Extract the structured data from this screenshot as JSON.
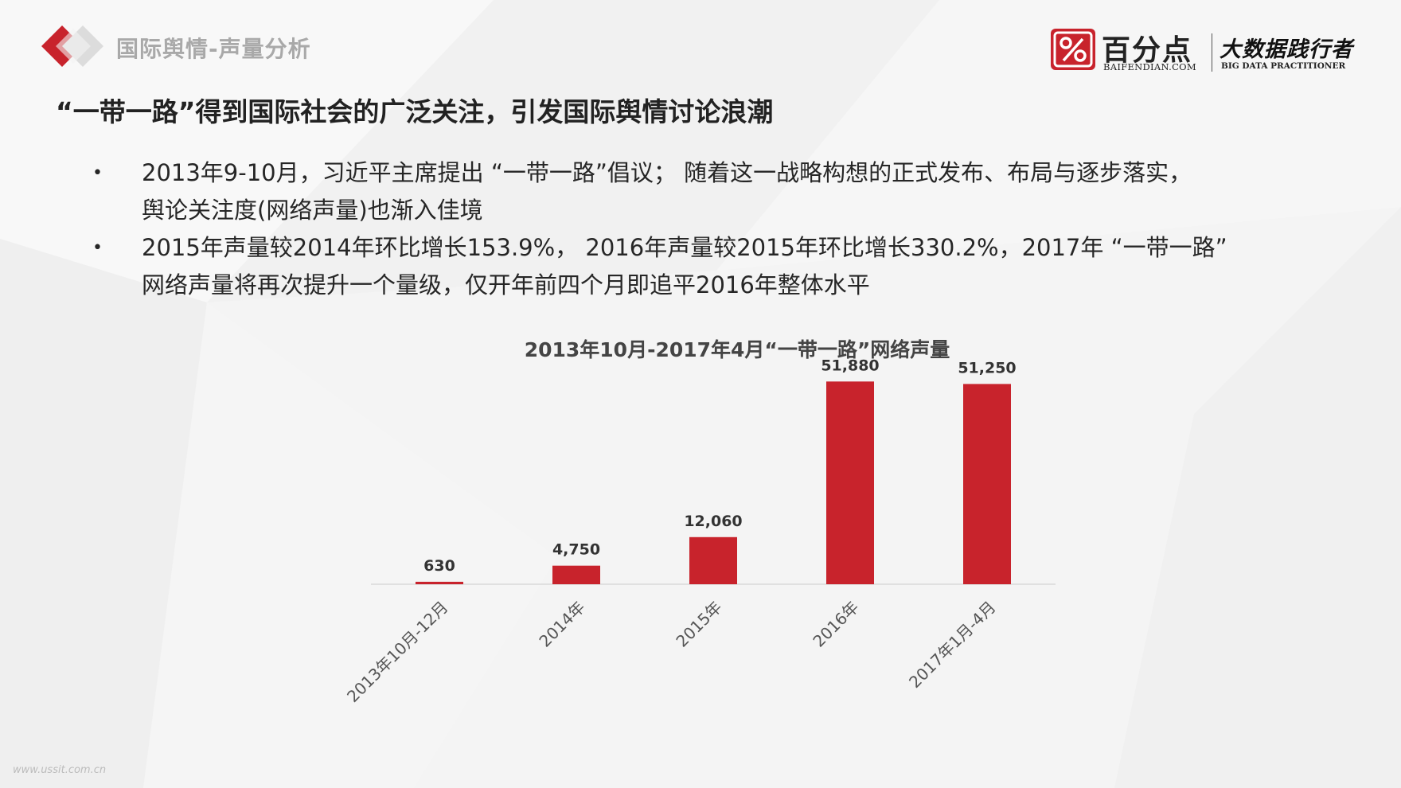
{
  "header": {
    "section_title": "国际舆情-声量分析",
    "brand_name": "百分点",
    "brand_url": "BAIFENDIAN.COM",
    "brand_slogan": "大数据践行者",
    "brand_slogan_en": "BIG DATA PRACTITIONER",
    "brand_badge_glyph": "%"
  },
  "headline": "“一带一路”得到国际社会的广泛关注，引发国际舆情讨论浪潮",
  "bullets": [
    {
      "marker": "•",
      "line1": "2013年9-10月，习近平主席提出 “一带一路”倡议； 随着这一战略构想的正式发布、布局与逐步落实，",
      "line2": "舆论关注度(网络声量)也渐入佳境"
    },
    {
      "marker": "•",
      "line1": "2015年声量较2014年环比增长153.9%， 2016年声量较2015年环比增长330.2%，2017年 “一带一路”",
      "line2": "网络声量将再次提升一个量级，仅开年前四个月即追平2016年整体水平"
    }
  ],
  "chart_data": {
    "type": "bar",
    "title": "2013年10月-2017年4月“一带一路”网络声量",
    "categories": [
      "2013年10月-12月",
      "2014年",
      "2015年",
      "2016年",
      "2017年1月-4月"
    ],
    "values": [
      630,
      4750,
      12060,
      51880,
      51250
    ],
    "value_labels": [
      "630",
      "4,750",
      "12,060",
      "51,880",
      "51,250"
    ],
    "xlabel": "",
    "ylabel": "",
    "ylim": [
      0,
      55000
    ],
    "grid": false,
    "legend": "none",
    "bar_color": "#c8232c"
  },
  "watermark": "www.ussit.com.cn",
  "colors": {
    "accent": "#c8232c",
    "text": "#262626",
    "muted": "#a9a9a9"
  }
}
